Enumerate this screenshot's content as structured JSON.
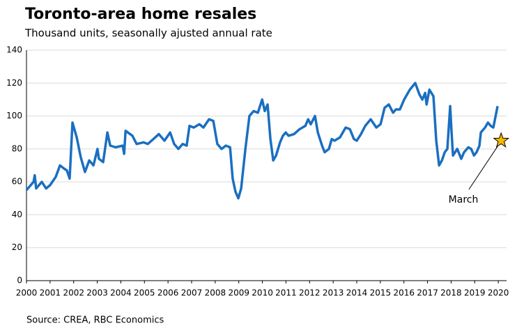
{
  "chart_data": {
    "type": "line",
    "title": "Toronto-area home resales",
    "subtitle": "Thousand units, seasonally ajusted annual rate",
    "source": "Source: CREA, RBC Economics",
    "x": [
      2000.0,
      2000.3,
      2000.35,
      2000.41,
      2000.65,
      2000.83,
      2001.0,
      2001.24,
      2001.42,
      2001.6,
      2001.71,
      2001.83,
      2001.95,
      2002.13,
      2002.3,
      2002.48,
      2002.66,
      2002.84,
      2003.01,
      2003.07,
      2003.25,
      2003.43,
      2003.55,
      2003.78,
      2004.08,
      2004.14,
      2004.2,
      2004.49,
      2004.67,
      2004.96,
      2005.14,
      2005.38,
      2005.61,
      2005.85,
      2006.09,
      2006.26,
      2006.44,
      2006.62,
      2006.79,
      2006.91,
      2007.09,
      2007.33,
      2007.5,
      2007.74,
      2007.92,
      2008.09,
      2008.27,
      2008.45,
      2008.63,
      2008.74,
      2008.86,
      2008.98,
      2009.1,
      2009.28,
      2009.45,
      2009.63,
      2009.81,
      2009.99,
      2010.1,
      2010.22,
      2010.34,
      2010.46,
      2010.58,
      2010.75,
      2010.87,
      2010.99,
      2011.11,
      2011.34,
      2011.58,
      2011.82,
      2011.94,
      2012.05,
      2012.23,
      2012.35,
      2012.53,
      2012.64,
      2012.82,
      2012.94,
      2013.06,
      2013.29,
      2013.53,
      2013.71,
      2013.88,
      2014.0,
      2014.18,
      2014.36,
      2014.59,
      2014.83,
      2015.01,
      2015.18,
      2015.36,
      2015.54,
      2015.66,
      2015.83,
      2016.01,
      2016.25,
      2016.48,
      2016.66,
      2016.78,
      2016.9,
      2016.96,
      2017.08,
      2017.25,
      2017.37,
      2017.49,
      2017.61,
      2017.73,
      2017.84,
      2017.96,
      2018.02,
      2018.08,
      2018.26,
      2018.43,
      2018.55,
      2018.73,
      2018.85,
      2018.97,
      2019.08,
      2019.2,
      2019.26,
      2019.44,
      2019.56,
      2019.68,
      2019.79,
      2019.97
    ],
    "series": [
      {
        "name": "Home resales",
        "color": "#1a6fc0",
        "values": [
          55,
          60,
          64,
          56,
          60,
          56,
          58,
          63,
          70,
          68,
          67,
          62,
          96,
          87,
          75,
          66,
          73,
          70,
          80,
          74,
          72,
          90,
          82,
          81,
          82,
          77,
          91,
          88,
          83,
          84,
          83,
          86,
          89,
          85,
          90,
          83,
          80,
          83,
          82,
          94,
          93,
          95,
          93,
          98,
          97,
          83,
          80,
          82,
          81,
          62,
          54,
          50,
          56,
          80,
          100,
          103,
          102,
          110,
          103,
          107,
          86,
          73,
          76,
          84,
          88,
          90,
          88,
          89,
          92,
          94,
          98,
          95,
          100,
          90,
          82,
          78,
          80,
          86,
          85,
          87,
          93,
          92,
          86,
          85,
          89,
          94,
          98,
          93,
          95,
          105,
          107,
          102,
          104,
          104,
          110,
          116,
          120,
          113,
          110,
          114,
          107,
          116,
          112,
          85,
          70,
          73,
          78,
          80,
          106,
          90,
          76,
          80,
          74,
          78,
          81,
          80,
          76,
          78,
          82,
          90,
          93,
          96,
          94,
          93,
          106
        ]
      }
    ],
    "annotation": {
      "label": "March",
      "x": 2020.12,
      "y": 85
    },
    "xlim": [
      2000,
      2020.35
    ],
    "xticks": [
      2000,
      2001,
      2002,
      2003,
      2004,
      2005,
      2006,
      2007,
      2008,
      2009,
      2010,
      2011,
      2012,
      2013,
      2014,
      2015,
      2016,
      2017,
      2018,
      2019,
      2020
    ],
    "ylim": [
      0,
      140
    ],
    "yticks": [
      0,
      20,
      40,
      60,
      80,
      100,
      120,
      140
    ],
    "grid": true
  }
}
